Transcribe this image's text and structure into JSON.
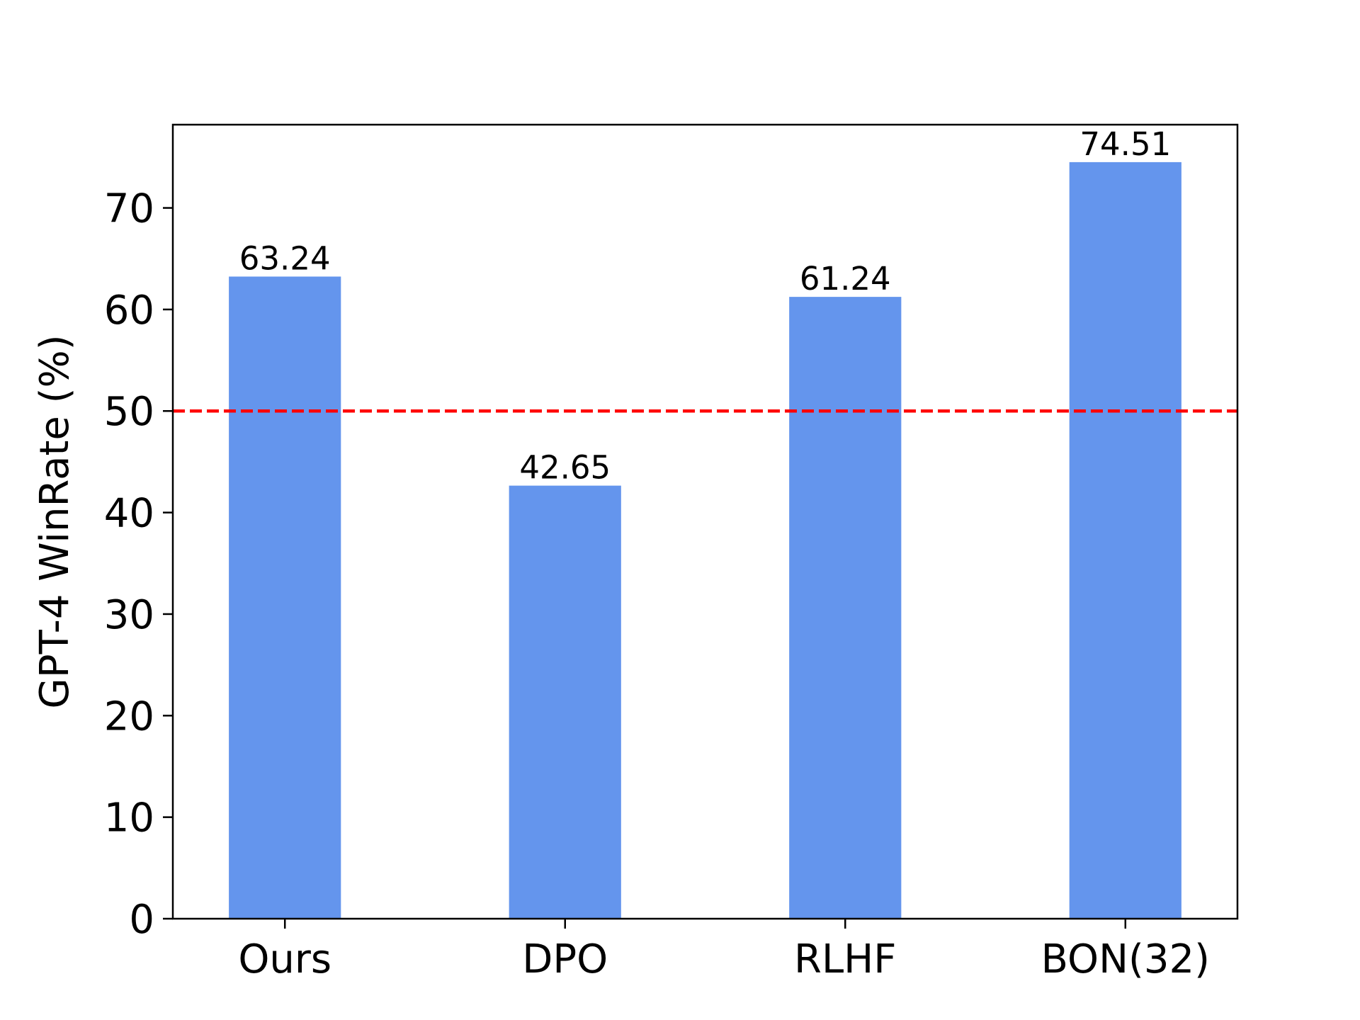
{
  "chart_data": {
    "type": "bar",
    "categories": [
      "Ours",
      "DPO",
      "RLHF",
      "BON(32)"
    ],
    "values": [
      63.24,
      42.65,
      61.24,
      74.51
    ],
    "data_labels": [
      "63.24",
      "42.65",
      "61.24",
      "74.51"
    ],
    "ylabel": "GPT-4 WinRate (%)",
    "xlabel": "",
    "ylim": [
      0,
      78.2
    ],
    "yticks": [
      0,
      10,
      20,
      30,
      40,
      50,
      60,
      70
    ],
    "reference_line": {
      "value": 50,
      "style": "dashed",
      "color": "#ff0000"
    },
    "bar_color": "#6495ed",
    "grid": false,
    "legend": "none"
  }
}
